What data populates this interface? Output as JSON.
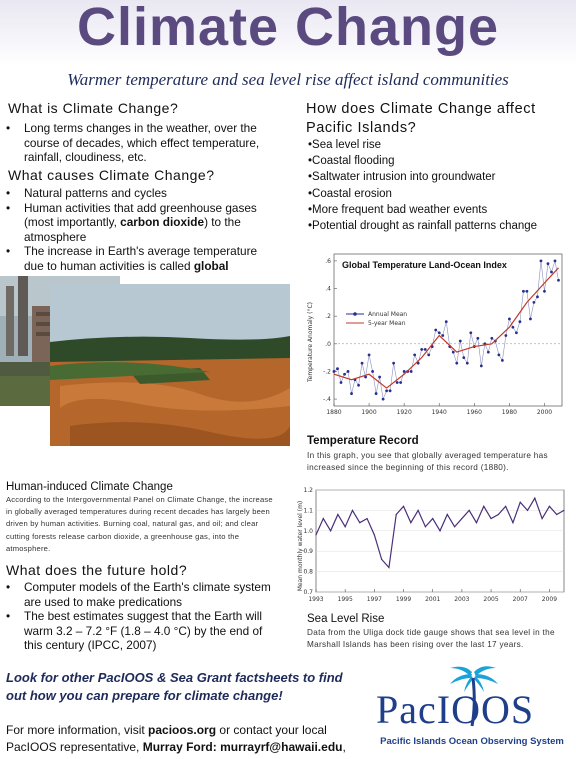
{
  "header": {
    "title": "Climate Change",
    "subtitle": "Warmer temperature and sea level rise affect island communities"
  },
  "left": {
    "what_is": {
      "heading": "What is Climate Change?",
      "bullets": [
        "Long terms changes in the weather, over the course of decades, which effect temperature, rainfall, cloudiness, etc."
      ]
    },
    "what_causes": {
      "heading": "What causes Climate Change?",
      "bullet1": "Natural patterns and cycles",
      "bullet2_pre": "Human activities that add greenhouse gases (most importantly, ",
      "bullet2_bold": "carbon dioxide",
      "bullet2_post": ") to the atmosphere",
      "bullet3_pre": "The increase in Earth's average temperature due to human activities is called ",
      "bullet3_bold": "global"
    },
    "human_induced": {
      "heading": "Human-induced Climate Change",
      "body": "According to the Intergovernmental Panel on Climate Change, the increase in globally averaged temperatures during recent decades has largely been driven by human activities. Burning coal, natural gas, and oil; and clear cutting forests release carbon dioxide, a greenhouse gas, into the atmosphere."
    },
    "future": {
      "heading": "What does the future hold?",
      "bullets": [
        "Computer models of the Earth's climate system are used to make predications",
        "The best estimates suggest that the Earth will warm 3.2 – 7.2 °F (1.8 – 4.0 °C) by the end of this century (IPCC, 2007)"
      ]
    },
    "look_for": "Look for other PacIOOS & Sea Grant factsheets to find out how you can prepare for climate change!",
    "contact": {
      "pre": "For more information, visit ",
      "site": "pacioos.org",
      "mid": " or contact your local PacIOOS representative, ",
      "name": "Murray Ford: murrayrf@hawaii.edu",
      "post": ","
    }
  },
  "right": {
    "heading": "How does Climate Change affect Pacific Islands?",
    "impacts": [
      "•Sea level rise",
      "•Coastal flooding",
      "•Saltwater intrusion into groundwater",
      "•Coastal erosion",
      "•More frequent bad weather events",
      "•Potential drought as rainfall patterns change"
    ],
    "temp_caption_heading": "Temperature Record",
    "temp_caption": "In this graph, you see that globally averaged temperature has increased since the beginning of this record (1880).",
    "sea_caption_heading": "Sea Level Rise",
    "sea_caption": "Data from the Uliga dock tide gauge shows that sea level in the Marshall Islands has been rising over the last 17 years."
  },
  "logo": {
    "text": "PacIOOS",
    "tagline": "Pacific Islands Ocean Observing System",
    "colors": {
      "text": "#1f3f8a",
      "palm": "#1aa3d9"
    }
  },
  "colors": {
    "title": "#5b4a80",
    "annual": "#2a2f8f",
    "five_year": "#c0392b",
    "sea": "#4a2f7a"
  },
  "chart_data": [
    {
      "type": "line",
      "title": "Global Temperature Land-Ocean Index",
      "ylabel": "Temperature Anomaly (°C)",
      "xlim": [
        1880,
        2010
      ],
      "ylim": [
        -0.45,
        0.65
      ],
      "xticks": [
        1880,
        1900,
        1920,
        1940,
        1960,
        1980,
        2000
      ],
      "yticks": [
        -0.4,
        -0.2,
        0,
        0.2,
        0.4,
        0.6
      ],
      "ytick_labels": [
        "-.4",
        "-.2",
        ".0",
        ".2",
        ".4",
        ".6"
      ],
      "series": [
        {
          "name": "Annual Mean",
          "x": [
            1880,
            1882,
            1884,
            1886,
            1888,
            1890,
            1892,
            1894,
            1896,
            1898,
            1900,
            1902,
            1904,
            1906,
            1908,
            1910,
            1912,
            1914,
            1916,
            1918,
            1920,
            1922,
            1924,
            1926,
            1928,
            1930,
            1932,
            1934,
            1936,
            1938,
            1940,
            1942,
            1944,
            1946,
            1948,
            1950,
            1952,
            1954,
            1956,
            1958,
            1960,
            1962,
            1964,
            1966,
            1968,
            1970,
            1972,
            1974,
            1976,
            1978,
            1980,
            1982,
            1984,
            1986,
            1988,
            1990,
            1992,
            1994,
            1996,
            1998,
            2000,
            2002,
            2004,
            2006,
            2008
          ],
          "y": [
            -0.2,
            -0.18,
            -0.28,
            -0.22,
            -0.2,
            -0.36,
            -0.26,
            -0.3,
            -0.14,
            -0.24,
            -0.08,
            -0.2,
            -0.36,
            -0.24,
            -0.4,
            -0.34,
            -0.34,
            -0.14,
            -0.28,
            -0.28,
            -0.2,
            -0.2,
            -0.2,
            -0.08,
            -0.14,
            -0.04,
            -0.04,
            -0.08,
            -0.02,
            0.1,
            0.08,
            0.06,
            0.16,
            -0.02,
            -0.06,
            -0.14,
            0.02,
            -0.1,
            -0.14,
            0.08,
            -0.02,
            0.04,
            -0.16,
            0.0,
            -0.06,
            0.04,
            0.02,
            -0.08,
            -0.12,
            0.06,
            0.18,
            0.12,
            0.08,
            0.16,
            0.38,
            0.38,
            0.18,
            0.3,
            0.34,
            0.6,
            0.38,
            0.58,
            0.52,
            0.6,
            0.46
          ]
        },
        {
          "name": "5-year Mean",
          "x": [
            1880,
            1890,
            1900,
            1910,
            1920,
            1930,
            1940,
            1950,
            1960,
            1970,
            1980,
            1990,
            2000,
            2008
          ],
          "y": [
            -0.22,
            -0.26,
            -0.22,
            -0.32,
            -0.22,
            -0.1,
            0.06,
            -0.06,
            -0.02,
            0.0,
            0.12,
            0.3,
            0.44,
            0.55
          ]
        }
      ]
    },
    {
      "type": "line",
      "ylabel": "Mean monthly water level (m)",
      "xlim": [
        1993,
        2010
      ],
      "ylim": [
        0.7,
        1.2
      ],
      "xticks": [
        1993,
        1995,
        1997,
        1999,
        2001,
        2003,
        2005,
        2007,
        2009
      ],
      "xtick_labels": [
        "1993",
        "1995",
        "1997",
        "1999",
        "2001",
        "2003",
        "2005",
        "2007",
        "2009"
      ],
      "yticks": [
        0.7,
        0.8,
        0.9,
        1.0,
        1.1,
        1.2
      ],
      "ytick_labels": [
        "0.7",
        "0.8",
        "0.9",
        "1.0",
        "1.1",
        "1.2"
      ],
      "series": [
        {
          "name": "",
          "x": [
            1993,
            1993.5,
            1994,
            1994.5,
            1995,
            1995.5,
            1996,
            1996.5,
            1997,
            1997.5,
            1998,
            1998.5,
            1999,
            1999.5,
            2000,
            2000.5,
            2001,
            2001.5,
            2002,
            2002.5,
            2003,
            2003.5,
            2004,
            2004.5,
            2005,
            2005.5,
            2006,
            2006.5,
            2007,
            2007.5,
            2008,
            2008.5,
            2009,
            2009.5,
            2010
          ],
          "y": [
            0.98,
            1.06,
            1.0,
            1.08,
            1.02,
            1.1,
            1.04,
            1.06,
            0.98,
            0.86,
            0.82,
            1.08,
            1.12,
            1.04,
            1.1,
            1.02,
            1.06,
            1.0,
            1.08,
            1.02,
            1.06,
            1.1,
            1.04,
            1.12,
            1.06,
            1.08,
            1.12,
            1.04,
            1.14,
            1.1,
            1.16,
            1.06,
            1.12,
            1.08,
            1.1
          ]
        }
      ]
    }
  ]
}
